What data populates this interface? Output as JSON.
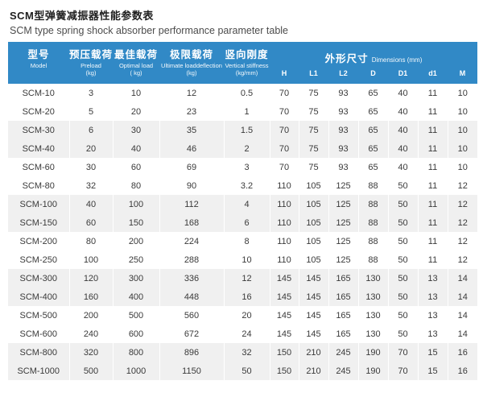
{
  "page": {
    "title_cn": "SCM型弹簧减振器性能参数表",
    "title_en": "SCM type spring shock absorber performance parameter table"
  },
  "colors": {
    "header_blue": "#3189c6",
    "stripe_gray": "#f0f0f0",
    "header_text": "#ffffff",
    "body_text": "#3a3a3a"
  },
  "table": {
    "columns": [
      {
        "cn": "型号",
        "en": "Model",
        "unit": ""
      },
      {
        "cn": "预压载荷",
        "en": "Preload",
        "unit": "(kg)"
      },
      {
        "cn": "最佳载荷",
        "en": "Optimal load",
        "unit": "( kg)"
      },
      {
        "cn": "极限载荷",
        "en": "Ultimate loaddeflection",
        "unit": "(kg)"
      },
      {
        "cn": "竖向刚度",
        "en": "Vertical stiffness",
        "unit": "(kg/mm)"
      }
    ],
    "dims_group": {
      "cn": "外形尺寸",
      "en": "Dimensions (mm)"
    },
    "dim_columns": [
      "H",
      "L1",
      "L2",
      "D",
      "D1",
      "d1",
      "M"
    ],
    "rows": [
      {
        "model": "SCM-10",
        "preload": "3",
        "optimal": "10",
        "ultimate": "12",
        "stiffness": "0.5",
        "dims": [
          "70",
          "75",
          "93",
          "65",
          "40",
          "11",
          "10"
        ]
      },
      {
        "model": "SCM-20",
        "preload": "5",
        "optimal": "20",
        "ultimate": "23",
        "stiffness": "1",
        "dims": [
          "70",
          "75",
          "93",
          "65",
          "40",
          "11",
          "10"
        ]
      },
      {
        "model": "SCM-30",
        "preload": "6",
        "optimal": "30",
        "ultimate": "35",
        "stiffness": "1.5",
        "dims": [
          "70",
          "75",
          "93",
          "65",
          "40",
          "11",
          "10"
        ]
      },
      {
        "model": "SCM-40",
        "preload": "20",
        "optimal": "40",
        "ultimate": "46",
        "stiffness": "2",
        "dims": [
          "70",
          "75",
          "93",
          "65",
          "40",
          "11",
          "10"
        ]
      },
      {
        "model": "SCM-60",
        "preload": "30",
        "optimal": "60",
        "ultimate": "69",
        "stiffness": "3",
        "dims": [
          "70",
          "75",
          "93",
          "65",
          "40",
          "11",
          "10"
        ]
      },
      {
        "model": "SCM-80",
        "preload": "32",
        "optimal": "80",
        "ultimate": "90",
        "stiffness": "3.2",
        "dims": [
          "110",
          "105",
          "125",
          "88",
          "50",
          "11",
          "12"
        ]
      },
      {
        "model": "SCM-100",
        "preload": "40",
        "optimal": "100",
        "ultimate": "112",
        "stiffness": "4",
        "dims": [
          "110",
          "105",
          "125",
          "88",
          "50",
          "11",
          "12"
        ]
      },
      {
        "model": "SCM-150",
        "preload": "60",
        "optimal": "150",
        "ultimate": "168",
        "stiffness": "6",
        "dims": [
          "110",
          "105",
          "125",
          "88",
          "50",
          "11",
          "12"
        ]
      },
      {
        "model": "SCM-200",
        "preload": "80",
        "optimal": "200",
        "ultimate": "224",
        "stiffness": "8",
        "dims": [
          "110",
          "105",
          "125",
          "88",
          "50",
          "11",
          "12"
        ]
      },
      {
        "model": "SCM-250",
        "preload": "100",
        "optimal": "250",
        "ultimate": "288",
        "stiffness": "10",
        "dims": [
          "110",
          "105",
          "125",
          "88",
          "50",
          "11",
          "12"
        ]
      },
      {
        "model": "SCM-300",
        "preload": "120",
        "optimal": "300",
        "ultimate": "336",
        "stiffness": "12",
        "dims": [
          "145",
          "145",
          "165",
          "130",
          "50",
          "13",
          "14"
        ]
      },
      {
        "model": "SCM-400",
        "preload": "160",
        "optimal": "400",
        "ultimate": "448",
        "stiffness": "16",
        "dims": [
          "145",
          "145",
          "165",
          "130",
          "50",
          "13",
          "14"
        ]
      },
      {
        "model": "SCM-500",
        "preload": "200",
        "optimal": "500",
        "ultimate": "560",
        "stiffness": "20",
        "dims": [
          "145",
          "145",
          "165",
          "130",
          "50",
          "13",
          "14"
        ]
      },
      {
        "model": "SCM-600",
        "preload": "240",
        "optimal": "600",
        "ultimate": "672",
        "stiffness": "24",
        "dims": [
          "145",
          "145",
          "165",
          "130",
          "50",
          "13",
          "14"
        ]
      },
      {
        "model": "SCM-800",
        "preload": "320",
        "optimal": "800",
        "ultimate": "896",
        "stiffness": "32",
        "dims": [
          "150",
          "210",
          "245",
          "190",
          "70",
          "15",
          "16"
        ]
      },
      {
        "model": "SCM-1000",
        "preload": "500",
        "optimal": "1000",
        "ultimate": "1150",
        "stiffness": "50",
        "dims": [
          "150",
          "210",
          "245",
          "190",
          "70",
          "15",
          "16"
        ]
      }
    ]
  }
}
